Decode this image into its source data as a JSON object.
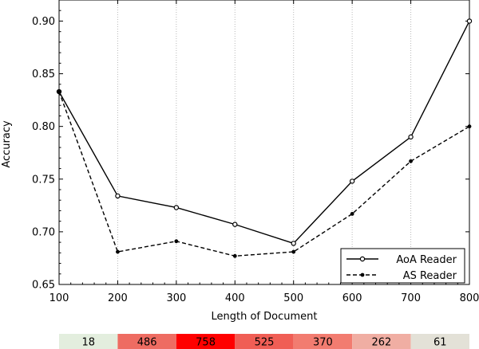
{
  "chart_data": {
    "type": "line",
    "x": [
      100,
      200,
      300,
      400,
      500,
      600,
      700,
      800
    ],
    "series": [
      {
        "name": "AoA Reader",
        "style": "solid",
        "marker": "open-circle",
        "values": [
          0.833,
          0.734,
          0.723,
          0.707,
          0.689,
          0.748,
          0.79,
          0.9
        ]
      },
      {
        "name": "AS Reader",
        "style": "dashed",
        "marker": "filled-dot",
        "values": [
          0.833,
          0.681,
          0.691,
          0.677,
          0.681,
          0.717,
          0.767,
          0.8
        ]
      }
    ],
    "xlabel": "Length of Document",
    "ylabel": "Accuracy",
    "xlim": [
      100,
      800
    ],
    "ylim": [
      0.65,
      0.92
    ],
    "xticks": [
      "100",
      "200",
      "300",
      "400",
      "500",
      "600",
      "700",
      "800"
    ],
    "yticks": [
      "0.65",
      "0.70",
      "0.75",
      "0.80",
      "0.85",
      "0.90"
    ],
    "grid": "vertical",
    "legend_position": "bottom-right",
    "counts": {
      "values": [
        "18",
        "486",
        "758",
        "525",
        "370",
        "262",
        "61"
      ],
      "colors": [
        "#e3eede",
        "#ee6c62",
        "#ff0000",
        "#f05e55",
        "#f27c70",
        "#f0aea3",
        "#e3e1d7"
      ]
    }
  }
}
